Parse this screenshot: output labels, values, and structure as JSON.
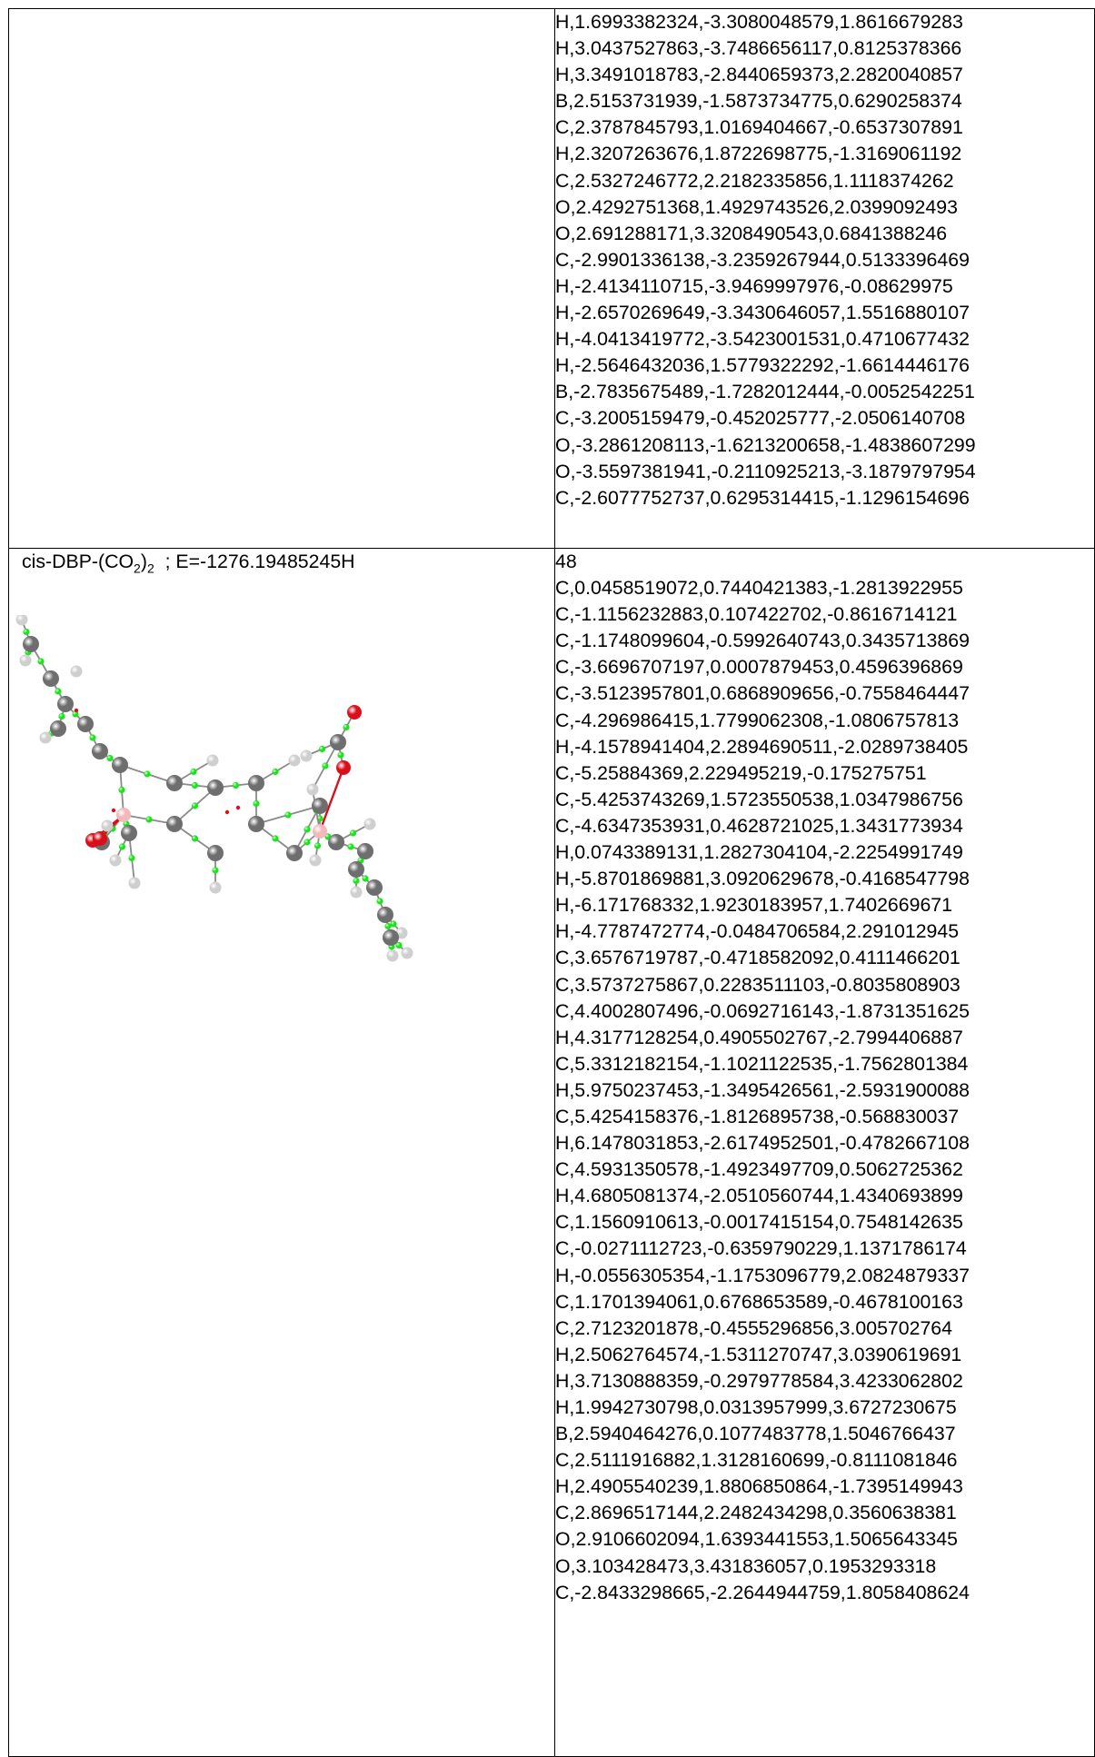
{
  "table": {
    "row1": {
      "coords": [
        "H,1.6993382324,-3.3080048579,1.8616679283",
        "H,3.0437527863,-3.7486656117,0.8125378366",
        "H,3.3491018783,-2.8440659373,2.2820040857",
        "B,2.5153731939,-1.5873734775,0.6290258374",
        "C,2.3787845793,1.0169404667,-0.6537307891",
        "H,2.3207263676,1.8722698775,-1.3169061192",
        "C,2.5327246772,2.2182335856,1.1118374262",
        "O,2.4292751368,1.4929743526,2.0399092493",
        "O,2.691288171,3.3208490543,0.6841388246",
        "C,-2.9901336138,-3.2359267944,0.5133396469",
        "H,-2.4134110715,-3.9469997976,-0.08629975",
        "H,-2.6570269649,-3.3430646057,1.5516880107",
        "H,-4.0413419772,-3.5423001531,0.4710677432",
        "H,-2.5646432036,1.5779322292,-1.6614446176",
        "B,-2.7835675489,-1.7282012444,-0.0052542251",
        "C,-3.2005159479,-0.452025777,-2.0506140708",
        "O,-3.2861208113,-1.6213200658,-1.4838607299",
        "O,-3.5597381941,-0.2110925213,-3.1879797954",
        "C,-2.6077752737,0.6295314415,-1.1296154696"
      ]
    },
    "row2": {
      "title_prefix": "cis-DBP-(CO",
      "title_sub1": "2",
      "title_mid": ")",
      "title_sub2": "2",
      "title_suffix": "  ; E=-1276.19485245H",
      "coords": [
        "48",
        "C,0.0458519072,0.7440421383,-1.2813922955",
        "C,-1.1156232883,0.107422702,-0.8616714121",
        "C,-1.1748099604,-0.5992640743,0.3435713869",
        "C,-3.6696707197,0.0007879453,0.4596396869",
        "C,-3.5123957801,0.6868909656,-0.7558464447",
        "C,-4.296986415,1.7799062308,-1.0806757813",
        "H,-4.1578941404,2.2894690511,-2.0289738405",
        "C,-5.25884369,2.229495219,-0.175275751",
        "C,-5.4253743269,1.5723550538,1.0347986756",
        "C,-4.6347353931,0.4628721025,1.3431773934",
        "H,0.0743389131,1.2827304104,-2.2254991749",
        "H,-5.8701869881,3.0920629678,-0.4168547798",
        "H,-6.171768332,1.9230183957,1.7402669671",
        "H,-4.7787472774,-0.0484706584,2.291012945",
        "C,3.6576719787,-0.4718582092,0.4111466201",
        "C,3.5737275867,0.2283511103,-0.8035808903",
        "C,4.4002807496,-0.0692716143,-1.8731351625",
        "H,4.3177128254,0.4905502767,-2.7994406887",
        "C,5.3312182154,-1.1021122535,-1.7562801384",
        "H,5.9750237453,-1.3495426561,-2.5931900088",
        "C,5.4254158376,-1.8126895738,-0.568830037",
        "H,6.1478031853,-2.6174952501,-0.4782667108",
        "C,4.5931350578,-1.4923497709,0.5062725362",
        "H,4.6805081374,-2.0510560744,1.4340693899",
        "C,1.1560910613,-0.0017415154,0.7548142635",
        "C,-0.0271112723,-0.6359790229,1.1371786174",
        "H,-0.0556305354,-1.1753096779,2.0824879337",
        "C,1.1701394061,0.6768653589,-0.4678100163",
        "C,2.7123201878,-0.4555296856,3.005702764",
        "H,2.5062764574,-1.5311270747,3.0390619691",
        "H,3.7130888359,-0.2979778584,3.4233062802",
        "H,1.9942730798,0.0313957999,3.6727230675",
        "B,2.5940464276,0.1077483778,1.5046766437",
        "C,2.5111916882,1.3128160699,-0.8111081846",
        "H,2.4905540239,1.8806850864,-1.7395149943",
        "C,2.8696517144,2.2482434298,0.3560638381",
        "O,2.9106602094,1.6393441553,1.5065643345",
        "O,3.103428473,3.431836057,0.1953293318",
        "C,-2.8433298665,-2.2644944759,1.8058408624"
      ]
    }
  },
  "colors": {
    "carbon": "#6e6e6e",
    "hydrogen": "#e6e6e6",
    "oxygen": "#d9101a",
    "boron": "#f2b8bc",
    "critical_point": "#19e619",
    "bond": "#8a8a8a"
  }
}
